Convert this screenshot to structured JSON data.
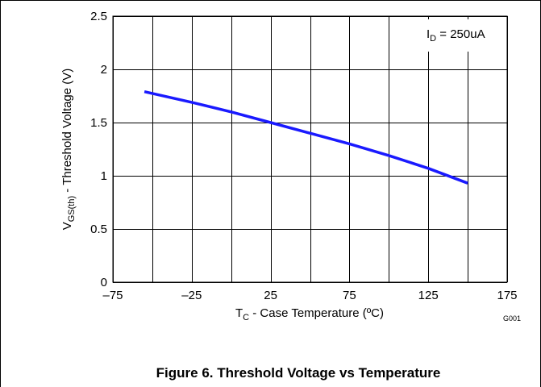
{
  "figure_caption": "Figure 6. Threshold Voltage vs Temperature",
  "graph_id": "G001",
  "chart_data": {
    "type": "line",
    "xlabel_main": "T",
    "xlabel_sub": "C",
    "xlabel_rest": " - Case Temperature (ºC)",
    "ylabel_main": "V",
    "ylabel_sub": "GS(th)",
    "ylabel_rest": " - Threshold Voltage (V)",
    "xlim": [
      -75,
      175
    ],
    "ylim": [
      0,
      2.5
    ],
    "x_ticks": [
      -75,
      -25,
      25,
      75,
      125,
      175
    ],
    "x_tick_labels": [
      "–75",
      "–25",
      "25",
      "75",
      "125",
      "175"
    ],
    "x_grid": [
      -75,
      -50,
      -25,
      0,
      25,
      50,
      75,
      100,
      125,
      150,
      175
    ],
    "y_ticks": [
      0,
      0.5,
      1,
      1.5,
      2,
      2.5
    ],
    "y_tick_labels": [
      "0",
      "0.5",
      "1",
      "1.5",
      "2",
      "2.5"
    ],
    "grid": true,
    "annotation": {
      "main": "I",
      "sub": "D",
      "rest": " = 250uA"
    },
    "line_color": "#1a1aff",
    "series": [
      {
        "x": [
          -55,
          -25,
          0,
          25,
          50,
          75,
          100,
          125,
          150
        ],
        "y": [
          1.79,
          1.69,
          1.6,
          1.5,
          1.4,
          1.3,
          1.19,
          1.07,
          0.93
        ]
      }
    ]
  }
}
